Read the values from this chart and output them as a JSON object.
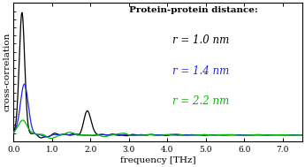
{
  "title": "Protein-protein distance:",
  "xlabel": "frequency [THz]",
  "ylabel": "cross-correlation",
  "xlim": [
    0,
    7.5
  ],
  "ylim": [
    -0.025,
    0.52
  ],
  "legend": [
    {
      "label": "r = 1.0 nm",
      "color": "#000000"
    },
    {
      "label": "r = 1.4 nm",
      "color": "#2222ee"
    },
    {
      "label": "r = 2.2 nm",
      "color": "#00bb00"
    }
  ],
  "xticks": [
    0.0,
    1.0,
    2.0,
    3.0,
    4.0,
    5.0,
    6.0,
    7.0
  ],
  "xtick_labels": [
    "0.0",
    "1.0",
    "2.0",
    "3.0",
    "4.0",
    "5.0",
    "6.0",
    "7.0"
  ],
  "background_color": "#ffffff",
  "line_width": 0.9,
  "title_fontsize": 7.5,
  "label_fontsize": 7.5,
  "tick_fontsize": 6.5,
  "legend_fontsize": 8.5,
  "figsize": [
    3.45,
    1.89
  ],
  "dpi": 100
}
